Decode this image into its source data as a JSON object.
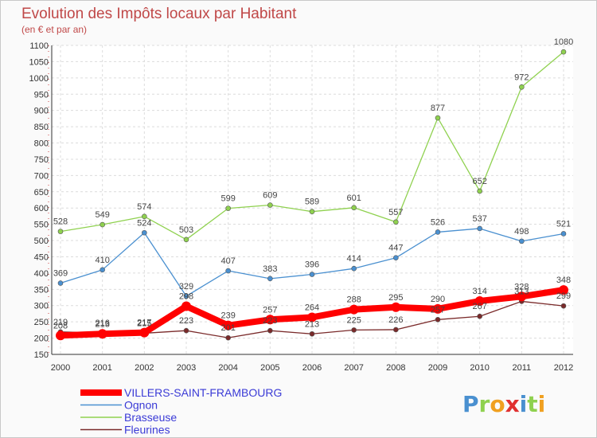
{
  "chart_data": {
    "type": "line",
    "title": "Evolution des Impôts locaux par Habitant",
    "subtitle": "(en € et par an)",
    "x": [
      2000,
      2001,
      2002,
      2003,
      2004,
      2005,
      2006,
      2007,
      2008,
      2009,
      2010,
      2011,
      2012
    ],
    "ylim": [
      150,
      1100
    ],
    "yticks": [
      150,
      200,
      250,
      300,
      350,
      400,
      450,
      500,
      550,
      600,
      650,
      700,
      750,
      800,
      850,
      900,
      950,
      1000,
      1050,
      1100
    ],
    "grid": true,
    "legend_position": "bottom-left",
    "series": [
      {
        "name": "Brasseuse",
        "color": "#8fd14f",
        "values": [
          528,
          549,
          574,
          503,
          599,
          609,
          589,
          601,
          557,
          877,
          652,
          972,
          1080
        ],
        "labels": [
          "528",
          "549",
          "574",
          "503",
          "599",
          "609",
          "589",
          "601",
          "557",
          "877",
          "652",
          "972",
          "1080"
        ]
      },
      {
        "name": "Ognon",
        "color": "#4a90d0",
        "values": [
          369,
          410,
          524,
          329,
          407,
          383,
          396,
          414,
          447,
          526,
          537,
          498,
          521
        ],
        "labels": [
          "369",
          "410",
          "524",
          "329",
          "407",
          "383",
          "396",
          "414",
          "447",
          "526",
          "537",
          "498",
          "521"
        ]
      },
      {
        "name": "Fleurines",
        "color": "#7a2a2a",
        "values": [
          219,
          216,
          215,
          223,
          201,
          223,
          213,
          225,
          226,
          257,
          267,
          313,
          299
        ],
        "labels": [
          "219",
          "216",
          "215",
          "223",
          "201",
          "223",
          "213",
          "225",
          "226",
          "257",
          "267",
          "313",
          "299"
        ]
      },
      {
        "name": "VILLERS-SAINT-FRAMBOURG",
        "color": "#ff0000",
        "values": [
          208,
          213,
          217,
          298,
          239,
          257,
          264,
          288,
          295,
          290,
          314,
          328,
          348
        ],
        "labels": [
          "208",
          "213",
          "217",
          "298",
          "239",
          "257",
          "264",
          "288",
          "295",
          "290",
          "314",
          "328",
          "348"
        ]
      }
    ],
    "legend": [
      {
        "name": "VILLERS-SAINT-FRAMBOURG",
        "color": "#ff0000",
        "thick": true
      },
      {
        "name": "Ognon",
        "color": "#4a90d0",
        "thick": false
      },
      {
        "name": "Brasseuse",
        "color": "#8fd14f",
        "thick": false
      },
      {
        "name": "Fleurines",
        "color": "#7a2a2a",
        "thick": false
      }
    ]
  },
  "logo": {
    "text": "Proxiti",
    "letters": [
      {
        "ch": "P",
        "color": "#4a90d0"
      },
      {
        "ch": "r",
        "color": "#8fd14f"
      },
      {
        "ch": "o",
        "color": "#f0a020"
      },
      {
        "ch": "x",
        "color": "#e03030"
      },
      {
        "ch": "i",
        "color": "#4a90d0"
      },
      {
        "ch": "t",
        "color": "#8fd14f"
      },
      {
        "ch": "i",
        "color": "#f0a020"
      }
    ]
  }
}
